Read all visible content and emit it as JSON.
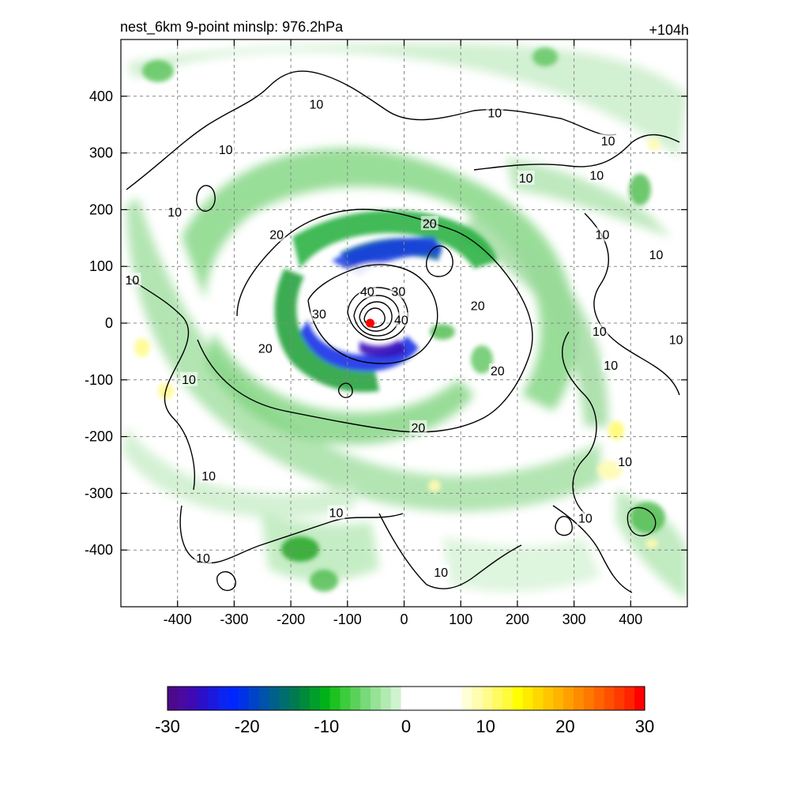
{
  "chart_data": {
    "type": "heatmap",
    "title": "nest_6km  9-point minslp: 976.2hPa",
    "subtitle": "+104h",
    "xlabel": "",
    "ylabel": "",
    "xlim": [
      -500,
      500
    ],
    "ylim": [
      -500,
      500
    ],
    "x_ticks": [
      -400,
      -300,
      -200,
      -100,
      0,
      100,
      200,
      300,
      400
    ],
    "y_ticks": [
      400,
      300,
      200,
      100,
      0,
      -100,
      -200,
      -300,
      -400
    ],
    "grid": true,
    "center_marker": {
      "x": -60,
      "y": 0,
      "color": "#ff0000"
    },
    "contour_levels": [
      10,
      20,
      30,
      40
    ],
    "contour_labels": [
      {
        "text": "10",
        "x": -155,
        "y": 385
      },
      {
        "text": "10",
        "x": 160,
        "y": 370
      },
      {
        "text": "10",
        "x": -315,
        "y": 305
      },
      {
        "text": "10",
        "x": 360,
        "y": 320
      },
      {
        "text": "10",
        "x": 215,
        "y": 255
      },
      {
        "text": "10",
        "x": 340,
        "y": 260
      },
      {
        "text": "10",
        "x": -405,
        "y": 195
      },
      {
        "text": "10",
        "x": -480,
        "y": 75
      },
      {
        "text": "10",
        "x": 350,
        "y": 155
      },
      {
        "text": "10",
        "x": 445,
        "y": 120
      },
      {
        "text": "10",
        "x": 345,
        "y": -15
      },
      {
        "text": "10",
        "x": 365,
        "y": -75
      },
      {
        "text": "10",
        "x": -380,
        "y": -100
      },
      {
        "text": "10",
        "x": 480,
        "y": -30
      },
      {
        "text": "10",
        "x": 390,
        "y": -245
      },
      {
        "text": "10",
        "x": -345,
        "y": -270
      },
      {
        "text": "10",
        "x": -120,
        "y": -335
      },
      {
        "text": "10",
        "x": 320,
        "y": -345
      },
      {
        "text": "10",
        "x": -355,
        "y": -415
      },
      {
        "text": "10",
        "x": 65,
        "y": -440
      },
      {
        "text": "20",
        "x": -225,
        "y": 155
      },
      {
        "text": "20",
        "x": 45,
        "y": 175
      },
      {
        "text": "20",
        "x": 130,
        "y": 30
      },
      {
        "text": "20",
        "x": 165,
        "y": -85
      },
      {
        "text": "20",
        "x": -245,
        "y": -45
      },
      {
        "text": "20",
        "x": 25,
        "y": -185
      },
      {
        "text": "30",
        "x": -150,
        "y": 15
      },
      {
        "text": "30",
        "x": -10,
        "y": 55
      },
      {
        "text": "40",
        "x": -65,
        "y": 55
      },
      {
        "text": "40",
        "x": -5,
        "y": 5
      }
    ],
    "colorbar": {
      "min": -30,
      "max": 30,
      "ticks": [
        -30,
        -20,
        -10,
        0,
        10,
        20,
        30
      ],
      "colors": [
        "#4b0a8a",
        "#4a0aa0",
        "#3d0ab4",
        "#2a10c8",
        "#1c19dc",
        "#0d24f0",
        "#0026ff",
        "#0033e6",
        "#0043c8",
        "#0052aa",
        "#00608c",
        "#006e6e",
        "#007a50",
        "#008a3c",
        "#009e2a",
        "#00b21a",
        "#1ec21e",
        "#3ccc3c",
        "#5ad25a",
        "#78da78",
        "#96e296",
        "#b2eab2",
        "#cff2cf",
        "#ffffff",
        "#ffffff",
        "#ffffff",
        "#ffffff",
        "#ffffff",
        "#ffffff",
        "#ffffd4",
        "#fffdb0",
        "#fffc8c",
        "#fffb60",
        "#fffa3a",
        "#ffff00",
        "#ffea00",
        "#ffd800",
        "#ffc600",
        "#ffb400",
        "#ffa000",
        "#ff8c00",
        "#ff7800",
        "#ff6400",
        "#ff5000",
        "#ff3a00",
        "#ff2400",
        "#ff0000"
      ]
    }
  }
}
